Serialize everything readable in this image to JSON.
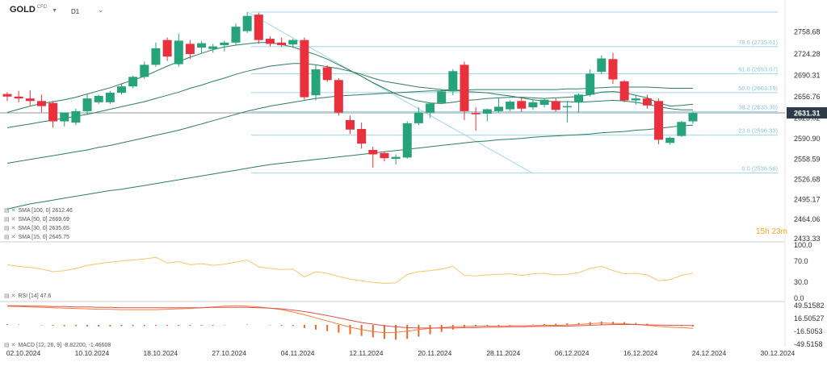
{
  "header": {
    "symbol": "GOLD",
    "symbol_tag": "CFD",
    "timeframe": "D1"
  },
  "countdown": "15h 23m",
  "legend": [
    {
      "label": "SMA [100, 0] 2612.46"
    },
    {
      "label": "SMA [50, 0] 2669.69"
    },
    {
      "label": "SMA [30, 0] 2635.65"
    },
    {
      "label": "SMA [15, 0] 2645.75"
    }
  ],
  "rsi_label": "RSI [14] 47.6",
  "macd_label": "MACD [12, 26, 9] -8.82200, -1.46608",
  "chart_data": [
    {
      "type": "candlestick",
      "name": "price",
      "ylim": [
        2433.33,
        2790.0
      ],
      "y_ticks": [
        "2758.68",
        "2724.28",
        "2690.31",
        "2656.76",
        "2623.02",
        "2590.90",
        "2558.59",
        "2526.68",
        "2495.17",
        "2464.06",
        "2433.33"
      ],
      "x_ticks": [
        "02.10.2024",
        "10.10.2024",
        "18.10.2024",
        "27.10.2024",
        "04.11.2024",
        "12.11.2024",
        "20.11.2024",
        "28.11.2024",
        "06.12.2024",
        "16.12.2024",
        "24.12.2024",
        "30.12.2024"
      ],
      "x_tick_index": [
        0,
        6,
        12,
        18,
        24,
        30,
        36,
        42,
        48,
        54,
        60,
        66
      ],
      "last_price": "2631.31",
      "last_price_value": 2631.31,
      "candles": [
        {
          "o": 2661,
          "h": 2664,
          "l": 2650,
          "c": 2657
        },
        {
          "o": 2657,
          "h": 2666,
          "l": 2648,
          "c": 2654
        },
        {
          "o": 2654,
          "h": 2667,
          "l": 2643,
          "c": 2650
        },
        {
          "o": 2650,
          "h": 2660,
          "l": 2632,
          "c": 2642
        },
        {
          "o": 2647,
          "h": 2650,
          "l": 2608,
          "c": 2618
        },
        {
          "o": 2618,
          "h": 2632,
          "l": 2610,
          "c": 2632
        },
        {
          "o": 2616,
          "h": 2638,
          "l": 2612,
          "c": 2634
        },
        {
          "o": 2634,
          "h": 2661,
          "l": 2628,
          "c": 2654
        },
        {
          "o": 2648,
          "h": 2660,
          "l": 2645,
          "c": 2658
        },
        {
          "o": 2648,
          "h": 2666,
          "l": 2645,
          "c": 2663
        },
        {
          "o": 2663,
          "h": 2678,
          "l": 2660,
          "c": 2673
        },
        {
          "o": 2673,
          "h": 2690,
          "l": 2670,
          "c": 2688
        },
        {
          "o": 2688,
          "h": 2712,
          "l": 2685,
          "c": 2707
        },
        {
          "o": 2707,
          "h": 2742,
          "l": 2704,
          "c": 2733
        },
        {
          "o": 2746,
          "h": 2750,
          "l": 2713,
          "c": 2720
        },
        {
          "o": 2708,
          "h": 2756,
          "l": 2704,
          "c": 2745
        },
        {
          "o": 2740,
          "h": 2746,
          "l": 2716,
          "c": 2724
        },
        {
          "o": 2734,
          "h": 2744,
          "l": 2726,
          "c": 2741
        },
        {
          "o": 2732,
          "h": 2740,
          "l": 2726,
          "c": 2736
        },
        {
          "o": 2738,
          "h": 2745,
          "l": 2728,
          "c": 2742
        },
        {
          "o": 2742,
          "h": 2772,
          "l": 2738,
          "c": 2767
        },
        {
          "o": 2760,
          "h": 2790,
          "l": 2757,
          "c": 2784
        },
        {
          "o": 2786,
          "h": 2789,
          "l": 2740,
          "c": 2746
        },
        {
          "o": 2748,
          "h": 2752,
          "l": 2736,
          "c": 2740
        },
        {
          "o": 2742,
          "h": 2750,
          "l": 2735,
          "c": 2738
        },
        {
          "o": 2739,
          "h": 2748,
          "l": 2734,
          "c": 2746
        },
        {
          "o": 2746,
          "h": 2750,
          "l": 2652,
          "c": 2656
        },
        {
          "o": 2659,
          "h": 2707,
          "l": 2651,
          "c": 2700
        },
        {
          "o": 2703,
          "h": 2706,
          "l": 2680,
          "c": 2683
        },
        {
          "o": 2683,
          "h": 2686,
          "l": 2627,
          "c": 2632
        },
        {
          "o": 2620,
          "h": 2627,
          "l": 2598,
          "c": 2605
        },
        {
          "o": 2606,
          "h": 2616,
          "l": 2575,
          "c": 2583
        },
        {
          "o": 2573,
          "h": 2578,
          "l": 2545,
          "c": 2566
        },
        {
          "o": 2568,
          "h": 2570,
          "l": 2555,
          "c": 2560
        },
        {
          "o": 2559,
          "h": 2566,
          "l": 2550,
          "c": 2562
        },
        {
          "o": 2561,
          "h": 2618,
          "l": 2559,
          "c": 2615
        },
        {
          "o": 2615,
          "h": 2640,
          "l": 2612,
          "c": 2632
        },
        {
          "o": 2632,
          "h": 2648,
          "l": 2623,
          "c": 2646
        },
        {
          "o": 2647,
          "h": 2668,
          "l": 2645,
          "c": 2665
        },
        {
          "o": 2665,
          "h": 2700,
          "l": 2659,
          "c": 2697
        },
        {
          "o": 2707,
          "h": 2712,
          "l": 2620,
          "c": 2634
        },
        {
          "o": 2631,
          "h": 2640,
          "l": 2603,
          "c": 2630
        },
        {
          "o": 2630,
          "h": 2638,
          "l": 2618,
          "c": 2637
        },
        {
          "o": 2634,
          "h": 2655,
          "l": 2632,
          "c": 2641
        },
        {
          "o": 2637,
          "h": 2651,
          "l": 2634,
          "c": 2649
        },
        {
          "o": 2650,
          "h": 2656,
          "l": 2633,
          "c": 2638
        },
        {
          "o": 2640,
          "h": 2652,
          "l": 2636,
          "c": 2648
        },
        {
          "o": 2644,
          "h": 2654,
          "l": 2640,
          "c": 2652
        },
        {
          "o": 2650,
          "h": 2654,
          "l": 2633,
          "c": 2636
        },
        {
          "o": 2640,
          "h": 2650,
          "l": 2616,
          "c": 2642
        },
        {
          "o": 2648,
          "h": 2662,
          "l": 2632,
          "c": 2660
        },
        {
          "o": 2660,
          "h": 2700,
          "l": 2657,
          "c": 2693
        },
        {
          "o": 2696,
          "h": 2722,
          "l": 2692,
          "c": 2717
        },
        {
          "o": 2716,
          "h": 2726,
          "l": 2677,
          "c": 2684
        },
        {
          "o": 2681,
          "h": 2683,
          "l": 2648,
          "c": 2651
        },
        {
          "o": 2651,
          "h": 2660,
          "l": 2644,
          "c": 2654
        },
        {
          "o": 2654,
          "h": 2660,
          "l": 2638,
          "c": 2643
        },
        {
          "o": 2650,
          "h": 2654,
          "l": 2582,
          "c": 2589
        },
        {
          "o": 2584,
          "h": 2594,
          "l": 2581,
          "c": 2592
        },
        {
          "o": 2595,
          "h": 2619,
          "l": 2593,
          "c": 2617
        },
        {
          "o": 2618,
          "h": 2633,
          "l": 2614,
          "c": 2631
        }
      ],
      "sma": [
        {
          "name": "SMA 15",
          "values": [
            2632,
            2637,
            2642,
            2646,
            2649,
            2652,
            2656,
            2661,
            2666,
            2671,
            2677,
            2683,
            2689,
            2697,
            2705,
            2712,
            2719,
            2725,
            2731,
            2735,
            2738,
            2740,
            2742,
            2742,
            2739,
            2735,
            2729,
            2723,
            2716,
            2707,
            2698,
            2689,
            2679,
            2670,
            2661,
            2655,
            2650,
            2647,
            2646,
            2648,
            2651,
            2652,
            2654,
            2655,
            2656,
            2656,
            2655,
            2654,
            2655,
            2656,
            2657,
            2660,
            2664,
            2665,
            2663,
            2659,
            2655,
            2647,
            2642,
            2643,
            2645
          ]
        },
        {
          "name": "SMA 30",
          "values": [
            2608,
            2611,
            2614,
            2617,
            2620,
            2623,
            2626,
            2629,
            2633,
            2637,
            2641,
            2645,
            2649,
            2654,
            2659,
            2664,
            2670,
            2675,
            2681,
            2686,
            2692,
            2697,
            2701,
            2705,
            2707,
            2709,
            2709,
            2707,
            2704,
            2701,
            2697,
            2692,
            2686,
            2681,
            2678,
            2675,
            2672,
            2670,
            2668,
            2667,
            2665,
            2664,
            2663,
            2660,
            2658,
            2655,
            2652,
            2650,
            2649,
            2649,
            2648,
            2649,
            2650,
            2651,
            2650,
            2648,
            2645,
            2641,
            2638,
            2636,
            2636
          ]
        },
        {
          "name": "SMA 50",
          "values": [
            2552,
            2555,
            2558,
            2561,
            2564,
            2567,
            2570,
            2573,
            2577,
            2580,
            2584,
            2588,
            2592,
            2596,
            2600,
            2604,
            2609,
            2614,
            2619,
            2624,
            2629,
            2634,
            2638,
            2642,
            2645,
            2648,
            2651,
            2654,
            2656,
            2658,
            2659,
            2660,
            2661,
            2662,
            2663,
            2664,
            2665,
            2666,
            2666,
            2667,
            2667,
            2668,
            2668,
            2668,
            2668,
            2668,
            2668,
            2668,
            2668,
            2669,
            2669,
            2670,
            2671,
            2672,
            2672,
            2672,
            2672,
            2671,
            2670,
            2670,
            2670
          ]
        },
        {
          "name": "SMA 100",
          "values": [
            2480,
            2484,
            2488,
            2491,
            2494,
            2497,
            2500,
            2503,
            2506,
            2509,
            2511,
            2514,
            2517,
            2520,
            2523,
            2526,
            2529,
            2532,
            2535,
            2538,
            2541,
            2544,
            2547,
            2550,
            2552,
            2554,
            2556,
            2558,
            2560,
            2562,
            2564,
            2566,
            2568,
            2570,
            2572,
            2574,
            2576,
            2578,
            2580,
            2582,
            2584,
            2586,
            2587,
            2589,
            2590,
            2591,
            2593,
            2594,
            2595,
            2596,
            2597,
            2598,
            2600,
            2601,
            2602,
            2604,
            2605,
            2607,
            2609,
            2611,
            2612
          ]
        }
      ],
      "fibonacci": [
        {
          "label": "78.6 (2735.61)",
          "value": 2735.61
        },
        {
          "label": "61.8 (2693.07)",
          "value": 2693.07
        },
        {
          "label": "50.0 (2663.19)",
          "value": 2663.19
        },
        {
          "label": "38.2 (2633.30)",
          "value": 2633.3
        },
        {
          "label": "23.6 (2596.33)",
          "value": 2596.33
        },
        {
          "label": "0.0 (2536.56)",
          "value": 2536.56
        }
      ],
      "fib_top": 2790.0,
      "trendline": {
        "from": {
          "index": 21,
          "value": 2790
        },
        "to": {
          "index": 46,
          "value": 2536
        }
      }
    },
    {
      "type": "line",
      "name": "RSI",
      "ylim": [
        0,
        100
      ],
      "y_ticks": [
        "100.0",
        "70.0",
        "30.0",
        "0.0"
      ],
      "values": [
        63,
        60,
        58,
        55,
        50,
        52,
        56,
        62,
        65,
        68,
        70,
        72,
        74,
        77,
        66,
        69,
        63,
        65,
        62,
        64,
        68,
        72,
        59,
        56,
        54,
        55,
        40,
        50,
        47,
        41,
        36,
        33,
        30,
        28,
        29,
        45,
        50,
        52,
        55,
        60,
        43,
        42,
        44,
        45,
        46,
        43,
        46,
        47,
        44,
        45,
        48,
        56,
        60,
        52,
        46,
        47,
        44,
        33,
        35,
        43,
        47.6
      ]
    },
    {
      "type": "bar+line",
      "name": "MACD",
      "ylim": [
        -49.5158,
        49.51582
      ],
      "y_ticks": [
        "49.51582",
        "16.50527",
        "-16.5053",
        "-49.5158"
      ],
      "histogram": [
        2,
        1,
        0,
        -1,
        -2,
        -3,
        -3,
        -4,
        -4,
        -4,
        -3,
        -3,
        -3,
        -2,
        -2,
        -2,
        -2,
        -2,
        -2,
        -1,
        0,
        1,
        0,
        -1,
        -2,
        -3,
        -8,
        -12,
        -16,
        -20,
        -24,
        -28,
        -32,
        -36,
        -38,
        -36,
        -30,
        -24,
        -18,
        -12,
        -8,
        -5,
        -3,
        -2,
        -1,
        0,
        1,
        2,
        3,
        4,
        5,
        7,
        9,
        8,
        7,
        5,
        3,
        0,
        -2,
        -3,
        -4
      ],
      "macd": [
        48,
        47,
        46,
        45,
        44,
        43,
        42,
        41,
        40,
        40,
        39,
        39,
        39,
        39,
        40,
        41,
        42,
        44,
        46,
        48,
        49,
        48,
        46,
        43,
        39,
        33,
        26,
        18,
        10,
        2,
        -6,
        -12,
        -17,
        -20,
        -19,
        -16,
        -12,
        -9,
        -7,
        -5,
        -4,
        -3,
        -3,
        -3,
        -2,
        -2,
        -2,
        -1,
        -1,
        0,
        1,
        3,
        5,
        4,
        3,
        1,
        -1,
        -4,
        -6,
        -7,
        -8.822
      ],
      "signal": [
        49,
        49,
        48,
        48,
        47,
        47,
        46,
        46,
        45,
        45,
        44,
        44,
        44,
        44,
        44,
        44,
        44,
        44,
        45,
        45,
        45,
        45,
        44,
        43,
        41,
        38,
        34,
        29,
        24,
        18,
        12,
        6,
        2,
        -2,
        -5,
        -7,
        -8,
        -8,
        -8,
        -8,
        -7,
        -7,
        -6,
        -6,
        -5,
        -5,
        -4,
        -4,
        -3,
        -3,
        -2,
        -1,
        0,
        1,
        1,
        1,
        0,
        -0.5,
        -1,
        -1.2,
        -1.46608
      ]
    }
  ],
  "colors": {
    "up": "#26a37a",
    "down": "#e8313d",
    "sma": "#2e7d5e",
    "fib": "#9fd4ea",
    "rsi": "#f9c56b",
    "macd": "#f08040",
    "macd_signal": "#e05050",
    "hist": "#e8672e",
    "grid": "#e2e2e2",
    "axis_text": "#333333",
    "last_price_bg": "#2f3b4a"
  }
}
